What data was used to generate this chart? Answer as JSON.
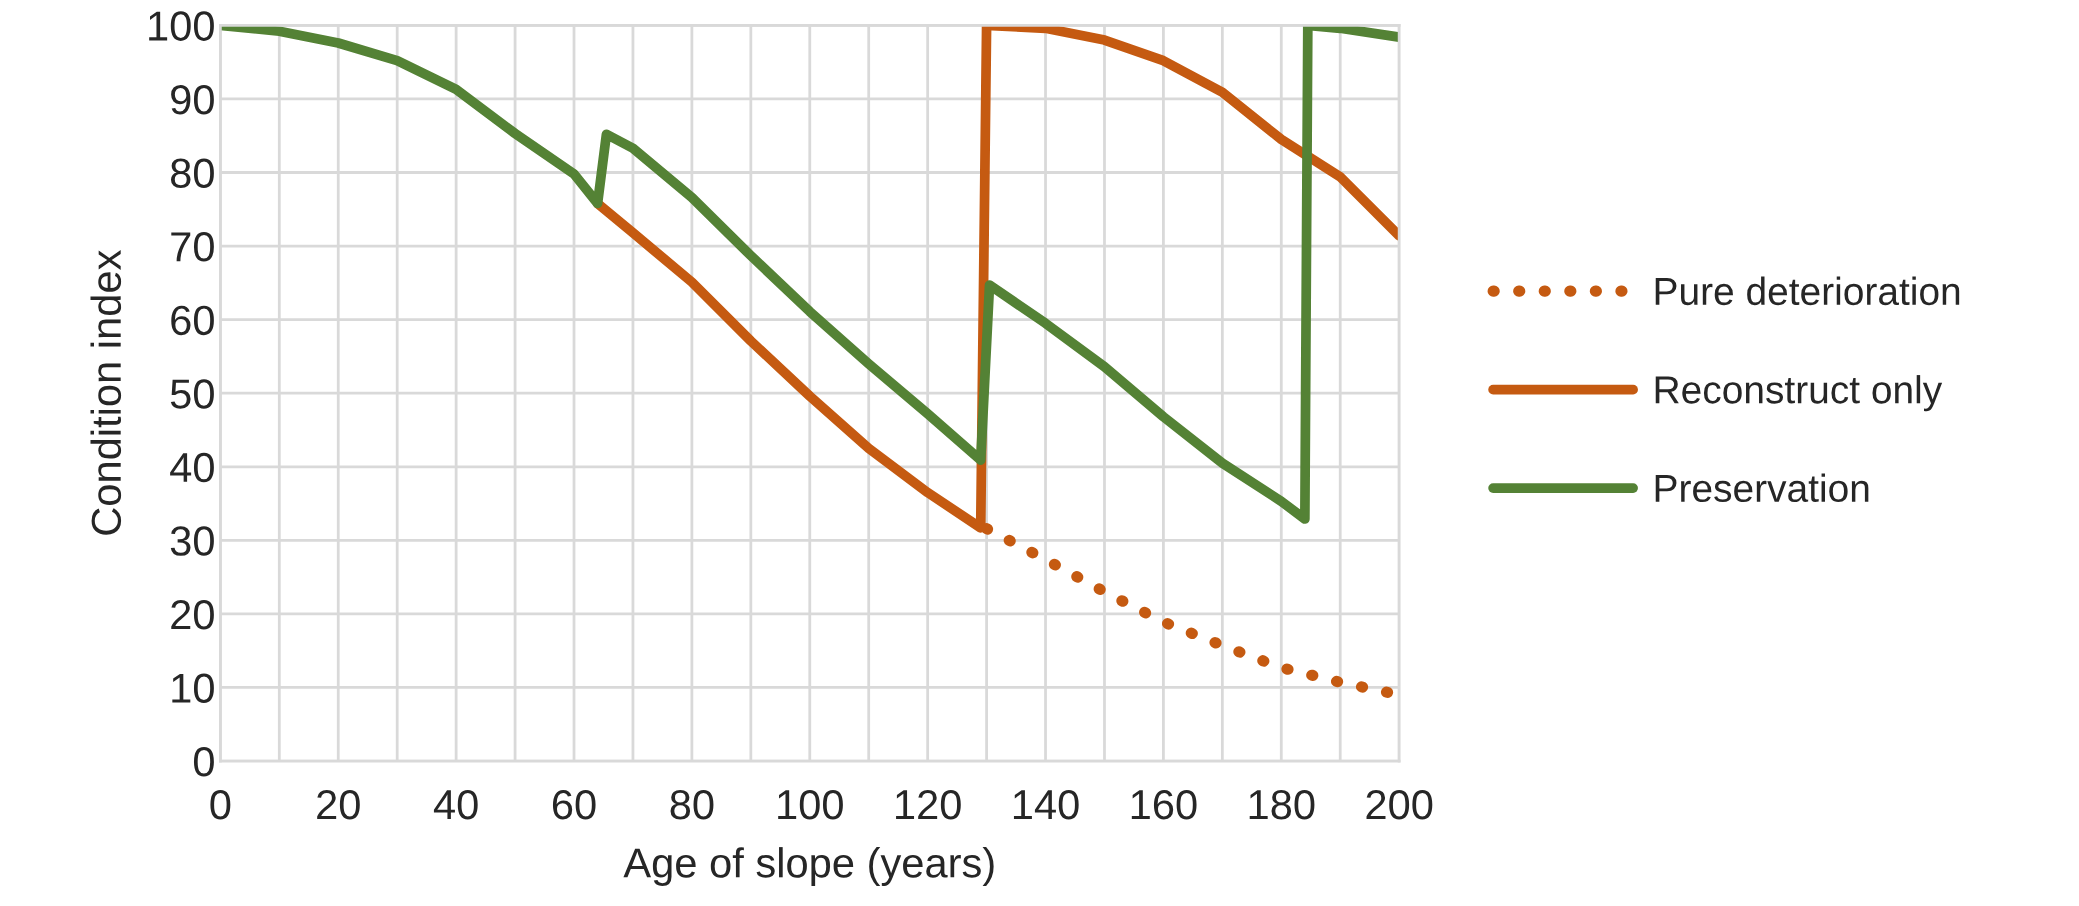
{
  "chart_data": {
    "type": "line",
    "xlabel": "Age of slope (years)",
    "ylabel": "Condition index",
    "xlim": [
      0,
      200
    ],
    "ylim": [
      0,
      100
    ],
    "xticks": [
      0,
      {
        "value": 10,
        "label": null
      },
      20,
      {
        "value": 30,
        "label": null
      },
      40,
      {
        "value": 50,
        "label": null
      },
      60,
      {
        "value": 70,
        "label": null
      },
      80,
      {
        "value": 90,
        "label": null
      },
      100,
      {
        "value": 110,
        "label": null
      },
      120,
      {
        "value": 130,
        "label": null
      },
      140,
      {
        "value": 150,
        "label": null
      },
      160,
      {
        "value": 170,
        "label": null
      },
      180,
      {
        "value": 190,
        "label": null
      },
      200
    ],
    "yticks": [
      0,
      10,
      20,
      30,
      40,
      50,
      60,
      70,
      80,
      90,
      100
    ],
    "grid": true,
    "legend": "right",
    "marker": "none",
    "series": [
      {
        "name": "Pure deterioration",
        "color": "#c55a11",
        "line_style": "dotted",
        "x": [
          130,
          140,
          150,
          160,
          170,
          180,
          190,
          200
        ],
        "values": [
          31.6,
          27.4,
          23,
          18.9,
          15.7,
          12.7,
          10.7,
          9
        ]
      },
      {
        "name": "Reconstruct only",
        "color": "#c55a11",
        "line_style": "solid",
        "x": [
          64,
          70,
          80,
          90,
          100,
          110,
          120,
          129,
          130,
          140,
          150,
          160,
          170,
          180,
          190,
          200
        ],
        "values": [
          75.8,
          71.8,
          65.1,
          57.1,
          49.6,
          42.5,
          36.5,
          31.7,
          100,
          99.6,
          98,
          95.2,
          90.9,
          84.5,
          79.4,
          71.4
        ]
      },
      {
        "name": "Preservation",
        "color": "#548235",
        "line_style": "solid",
        "x": [
          0,
          10,
          20,
          30,
          40,
          50,
          60,
          64,
          65.5,
          70,
          80,
          90,
          100,
          110,
          120,
          129,
          130.5,
          140,
          150,
          160,
          170,
          180,
          184,
          184.5,
          190,
          200
        ],
        "values": [
          100,
          99.2,
          97.6,
          95.2,
          91.3,
          85.3,
          79.8,
          75.8,
          85.2,
          83.3,
          76.6,
          68.7,
          61.1,
          54,
          47.2,
          40.9,
          64.7,
          59.5,
          53.6,
          46.8,
          40.5,
          35.3,
          32.9,
          100,
          99.6,
          98.4
        ]
      }
    ]
  }
}
